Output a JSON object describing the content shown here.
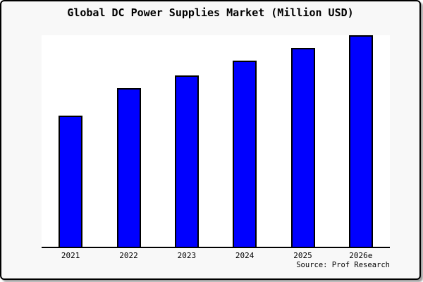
{
  "title": "Global DC Power Supplies Market (Million USD)",
  "source_note": "Source: Prof Research",
  "colors": {
    "figure_background": "#f8f8f8",
    "plot_background": "#ffffff",
    "bar_fill": "#0000ff",
    "bar_border": "#000000",
    "axis_line": "#000000",
    "text": "#000000"
  },
  "chart_data": {
    "type": "bar",
    "title": "Global DC Power Supplies Market (Million USD)",
    "categories": [
      "2021",
      "2022",
      "2023",
      "2024",
      "2025",
      "2026e"
    ],
    "values": [
      62,
      75,
      81,
      88,
      94,
      100
    ],
    "value_note": "relative bar heights, % of tallest bar; no y-axis scale shown in image",
    "xlabel": "",
    "ylabel": "",
    "ylim": [
      0,
      100
    ],
    "grid": false,
    "legend": false,
    "y_axis_visible": false,
    "x_axis_visible": true,
    "annotations": [
      "Source: Prof Research"
    ]
  }
}
